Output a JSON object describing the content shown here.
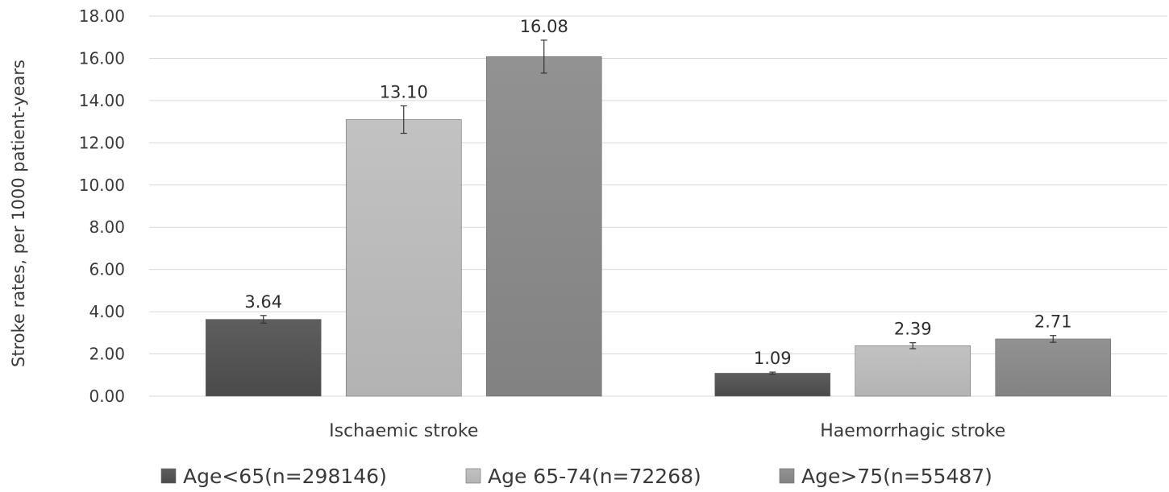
{
  "chart_data": {
    "type": "bar",
    "title": "",
    "xlabel": "",
    "ylabel": "Stroke rates, per 1000 patient-years",
    "ylim": [
      0,
      18
    ],
    "y_ticks": [
      "0.00",
      "2.00",
      "4.00",
      "6.00",
      "8.00",
      "10.00",
      "12.00",
      "14.00",
      "16.00",
      "18.00"
    ],
    "grid": true,
    "legend_position": "bottom",
    "categories": [
      "Ischaemic stroke",
      "Haemorrhagic stroke"
    ],
    "series": [
      {
        "name": "Age<65(n=298146)",
        "color": "#5a5a5a",
        "values": [
          3.64,
          1.09
        ],
        "value_labels": [
          "3.64",
          "1.09"
        ],
        "error_low": [
          3.46,
          1.04
        ],
        "error_high": [
          3.82,
          1.14
        ]
      },
      {
        "name": "Age 65-74(n=72268)",
        "color": "#bdbdbd",
        "values": [
          13.1,
          2.39
        ],
        "value_labels": [
          "13.10",
          "2.39"
        ],
        "error_low": [
          12.45,
          2.25
        ],
        "error_high": [
          13.75,
          2.53
        ]
      },
      {
        "name": "Age>75(n=55487)",
        "color": "#8c8c8c",
        "values": [
          16.08,
          2.71
        ],
        "value_labels": [
          "16.08",
          "2.71"
        ],
        "error_low": [
          15.3,
          2.55
        ],
        "error_high": [
          16.86,
          2.87
        ]
      }
    ]
  }
}
